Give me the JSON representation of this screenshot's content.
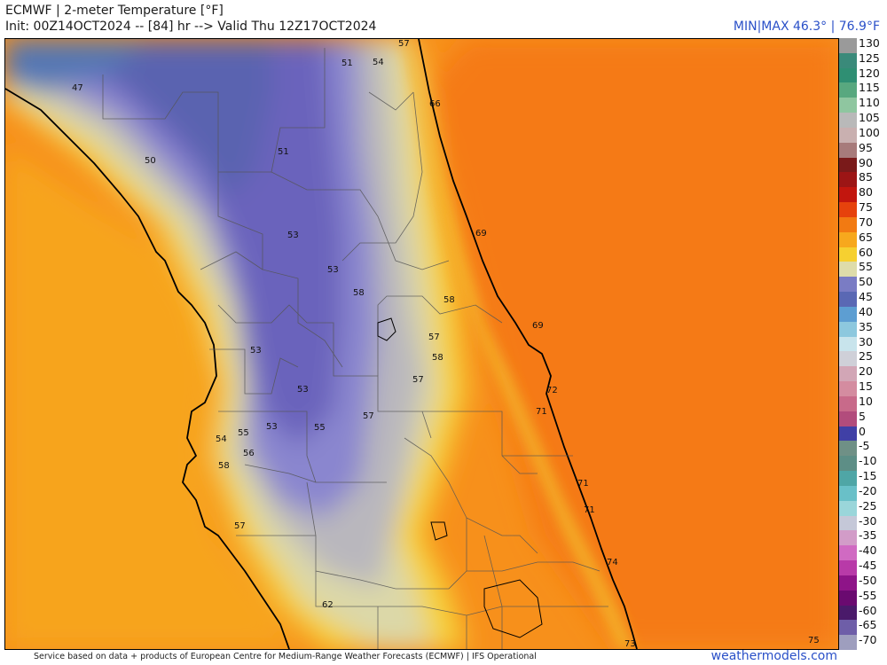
{
  "header": {
    "title": "ECMWF | 2-meter Temperature [°F]",
    "init": "Init: 00Z14OCT2024 -- [84] hr --> Valid Thu 12Z17OCT2024",
    "minmax": "MIN|MAX 46.3° | 76.9°F"
  },
  "legend": {
    "ticks": [
      "130",
      "125",
      "120",
      "115",
      "110",
      "105",
      "100",
      "95",
      "90",
      "85",
      "80",
      "75",
      "70",
      "65",
      "60",
      "55",
      "50",
      "45",
      "40",
      "35",
      "30",
      "25",
      "20",
      "15",
      "10",
      "5",
      "0",
      "-5",
      "-10",
      "-15",
      "-20",
      "-25",
      "-30",
      "-35",
      "-40",
      "-45",
      "-50",
      "-55",
      "-60",
      "-65",
      "-70"
    ],
    "colors": [
      "#9a9a9a",
      "#3a8a7a",
      "#2f8f73",
      "#58a87f",
      "#8fc6a0",
      "#b9b9b9",
      "#c9b0b0",
      "#a77b7b",
      "#7a1a1a",
      "#9c1515",
      "#c2160e",
      "#e6420c",
      "#f27a12",
      "#f7a81d",
      "#f6d030",
      "#dedcaa",
      "#7a7cc4",
      "#5a68b4",
      "#5d9ed2",
      "#8dc8de",
      "#c8e4ec",
      "#cfd0d8",
      "#d2a6b6",
      "#d48ca0",
      "#c86a8a",
      "#b24c7c",
      "#4040a6",
      "#6f9086",
      "#5d8e86",
      "#4fa6a6",
      "#69c0c8",
      "#9ad6da",
      "#c5c8d8",
      "#d29cc8",
      "#d06ac2",
      "#b83aa8",
      "#8e1488",
      "#6a0a70",
      "#4a1a6a",
      "#6e5ea8",
      "#9e9ebe"
    ]
  },
  "map": {
    "point_values": [
      {
        "value": "47"
      },
      {
        "value": "50"
      },
      {
        "value": "51"
      },
      {
        "value": "54"
      },
      {
        "value": "57"
      },
      {
        "value": "66"
      },
      {
        "value": "51"
      },
      {
        "value": "53"
      },
      {
        "value": "53"
      },
      {
        "value": "58"
      },
      {
        "value": "58"
      },
      {
        "value": "69"
      },
      {
        "value": "69"
      },
      {
        "value": "57"
      },
      {
        "value": "58"
      },
      {
        "value": "53"
      },
      {
        "value": "57"
      },
      {
        "value": "53"
      },
      {
        "value": "72"
      },
      {
        "value": "71"
      },
      {
        "value": "57"
      },
      {
        "value": "53"
      },
      {
        "value": "55"
      },
      {
        "value": "55"
      },
      {
        "value": "54"
      },
      {
        "value": "56"
      },
      {
        "value": "58"
      },
      {
        "value": "71"
      },
      {
        "value": "71"
      },
      {
        "value": "57"
      },
      {
        "value": "74"
      },
      {
        "value": "62"
      },
      {
        "value": "73"
      },
      {
        "value": "75"
      }
    ]
  },
  "footer": {
    "attribution": "Service based on data + products of European Centre for Medium-Range Weather Forecasts (ECMWF) | IFS Operational",
    "brand": "weathermodels.com"
  }
}
